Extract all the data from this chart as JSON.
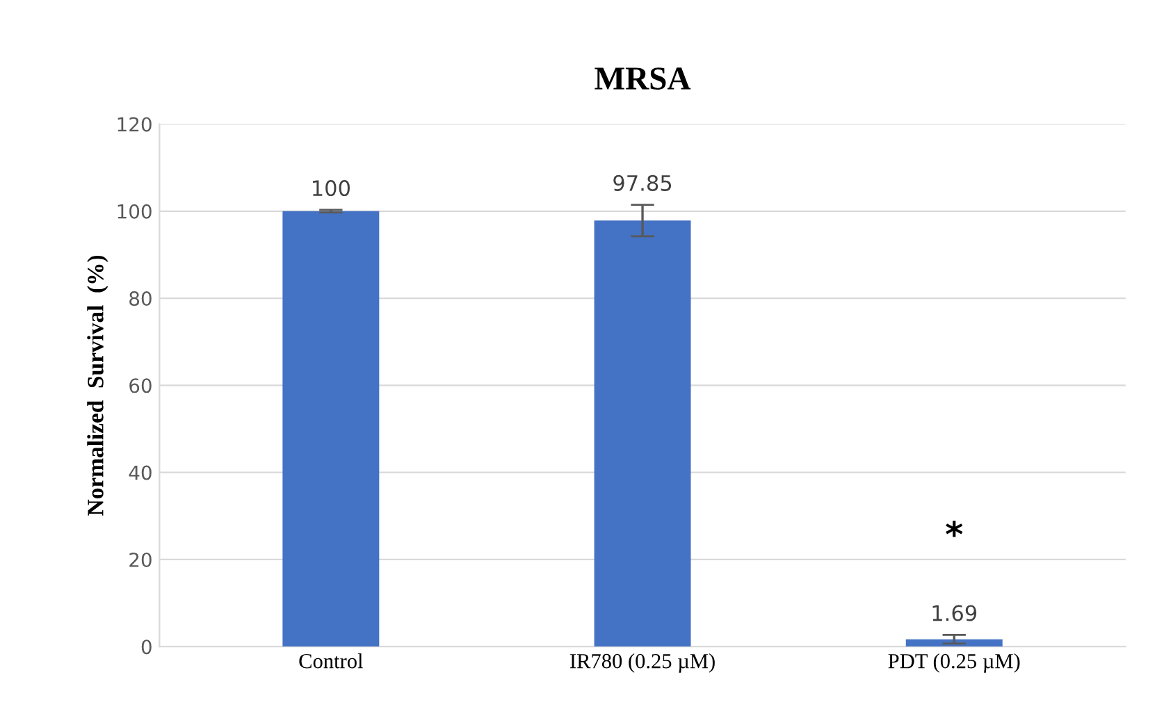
{
  "chart_data": {
    "type": "bar",
    "title": "MRSA",
    "ylabel": "Normalized  Survival  (%)",
    "categories": [
      "Control",
      "IR780 (0.25 µM)",
      "PDT (0.25 µM)"
    ],
    "values": [
      100,
      97.85,
      1.69
    ],
    "errors": [
      0.3,
      3.6,
      1.0
    ],
    "color": "#4472c4",
    "data_labels": true,
    "annotations": [
      "*"
    ],
    "ylim": [
      0,
      120
    ],
    "yticks": [
      0,
      20,
      40,
      60,
      80,
      100,
      120
    ],
    "grid": "y"
  }
}
